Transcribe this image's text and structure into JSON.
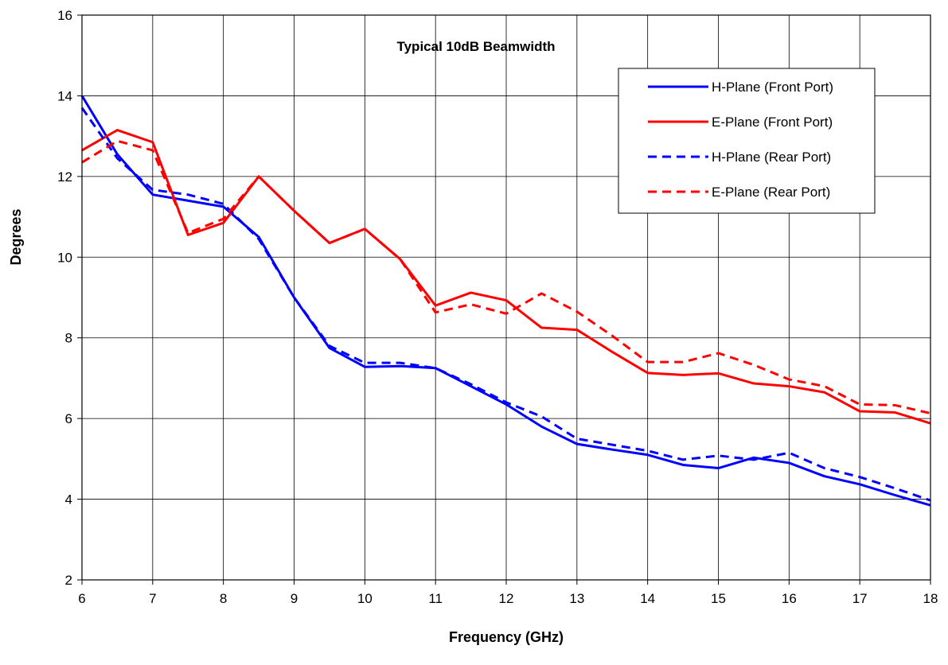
{
  "chart_data": {
    "type": "line",
    "title": "Typical 10dB Beamwidth",
    "xlabel": "Frequency  (GHz)",
    "ylabel": "Degrees",
    "xlim": [
      6,
      18
    ],
    "ylim": [
      2,
      16
    ],
    "xticks": [
      6,
      7,
      8,
      9,
      10,
      11,
      12,
      13,
      14,
      15,
      16,
      17,
      18
    ],
    "yticks": [
      2,
      4,
      6,
      8,
      10,
      12,
      14,
      16
    ],
    "grid": true,
    "legend_position": "top-right",
    "x": [
      6,
      6.5,
      7,
      7.5,
      8,
      8.5,
      9,
      9.5,
      10,
      10.5,
      11,
      11.5,
      12,
      12.5,
      13,
      13.5,
      14,
      14.5,
      15,
      15.5,
      16,
      16.5,
      17,
      17.5,
      18
    ],
    "series": [
      {
        "name": "H-Plane (Front Port)",
        "color": "#0000ff",
        "dash": "solid",
        "values": [
          14.0,
          12.55,
          11.55,
          11.4,
          11.25,
          10.5,
          9.0,
          7.75,
          7.28,
          7.3,
          7.25,
          6.8,
          6.35,
          5.8,
          5.37,
          5.23,
          5.1,
          4.85,
          4.77,
          5.03,
          4.9,
          4.57,
          4.37,
          4.1,
          3.85
        ]
      },
      {
        "name": "E-Plane (Front Port)",
        "color": "#ff0000",
        "dash": "solid",
        "values": [
          12.65,
          13.15,
          12.85,
          10.55,
          10.85,
          12.0,
          11.15,
          10.35,
          10.7,
          9.95,
          8.8,
          9.12,
          8.93,
          8.25,
          8.2,
          7.65,
          7.13,
          7.08,
          7.12,
          6.87,
          6.8,
          6.65,
          6.18,
          6.15,
          5.88
        ]
      },
      {
        "name": "H-Plane (Rear Port)",
        "color": "#0000ff",
        "dash": "dashed",
        "values": [
          13.7,
          12.45,
          11.67,
          11.55,
          11.32,
          10.45,
          9.0,
          7.8,
          7.38,
          7.38,
          7.25,
          6.85,
          6.4,
          6.05,
          5.5,
          5.35,
          5.2,
          4.98,
          5.08,
          4.98,
          5.15,
          4.77,
          4.55,
          4.27,
          3.97
        ]
      },
      {
        "name": "E-Plane (Rear Port)",
        "color": "#ff0000",
        "dash": "dashed",
        "values": [
          12.35,
          12.88,
          12.65,
          10.6,
          10.95,
          12.0,
          11.15,
          10.35,
          10.7,
          9.95,
          8.63,
          8.83,
          8.6,
          9.1,
          8.65,
          8.05,
          7.4,
          7.4,
          7.62,
          7.33,
          6.97,
          6.8,
          6.35,
          6.33,
          6.13
        ]
      }
    ]
  }
}
